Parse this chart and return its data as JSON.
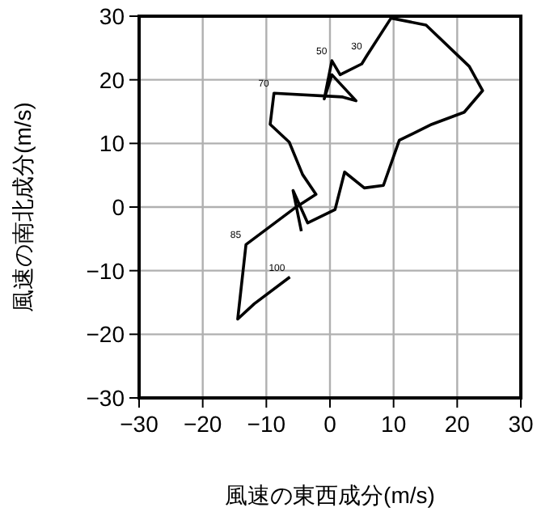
{
  "chart_data": {
    "type": "line",
    "xlabel": "風速の東西成分(m/s)",
    "ylabel": "風速の南北成分(m/s)",
    "xlim": [
      -30,
      30
    ],
    "ylim": [
      -30,
      30
    ],
    "xticks": [
      -30,
      -20,
      -10,
      0,
      10,
      20,
      30
    ],
    "yticks": [
      -30,
      -20,
      -10,
      0,
      10,
      20,
      30
    ],
    "grid": true,
    "marker": "none",
    "line_style": "solid",
    "series": [
      {
        "color": "#000000",
        "x": [
          -6.3,
          -11.9,
          -14.5,
          -13.2,
          -5.6,
          -2.2,
          -4.3,
          -6.4,
          -9.4,
          -8.8,
          2.0,
          4.1,
          0.3,
          -0.9,
          0.3,
          1.6,
          5,
          5.8,
          9.6,
          15.1,
          21.9,
          24,
          21.1,
          16,
          10.9,
          8.4,
          5.4,
          2.3,
          0.8,
          -3.5,
          -5.8,
          -4.5
        ],
        "values": [
          -11.0,
          -15.2,
          -17.6,
          -5.9,
          -0.2,
          2.0,
          5.1,
          10.2,
          13.0,
          17.9,
          17.3,
          16.7,
          20.8,
          17.0,
          23,
          20.8,
          22.5,
          23.8,
          29.7,
          28.6,
          22.1,
          18.3,
          14.9,
          13,
          10.5,
          3.4,
          3.0,
          5.5,
          -0.4,
          -2.5,
          2.6,
          -3.8
        ]
      }
    ],
    "annotations": [
      {
        "text": "30",
        "x": 5.8,
        "y": 23.8
      },
      {
        "text": "50",
        "x": 0.3,
        "y": 23
      },
      {
        "text": "70",
        "x": -8.8,
        "y": 17.9
      },
      {
        "text": "85",
        "x": -13.2,
        "y": -5.9
      },
      {
        "text": "100",
        "x": -6.3,
        "y": -11.0
      }
    ]
  }
}
